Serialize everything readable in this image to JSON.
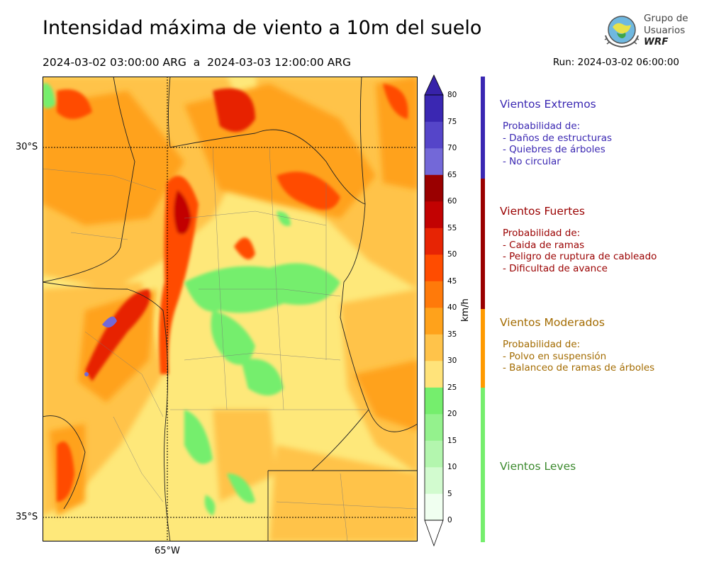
{
  "title": "Intensidad máxima de viento a 10m del suelo",
  "date_range": "2024-03-02 03:00:00 ARG  a  2024-03-03 12:00:00 ARG",
  "run": "Run: 2024-03-02 06:00:00",
  "logo": {
    "line1": "Grupo de",
    "line2": "Usuarios",
    "line3": "WRF"
  },
  "map": {
    "lat_labels": [
      "30°S",
      "35°S"
    ],
    "lon_labels": [
      "65°W"
    ],
    "background_color": "#fee87a"
  },
  "colorbar": {
    "unit": "km/h",
    "ticks": [
      "0",
      "5",
      "10",
      "15",
      "20",
      "25",
      "30",
      "35",
      "40",
      "45",
      "50",
      "55",
      "60",
      "65",
      "70",
      "75",
      "80"
    ],
    "colors": [
      "#f0fff0",
      "#d2fbcf",
      "#b3f6ae",
      "#94f28d",
      "#75ee6d",
      "#ffe37a",
      "#ffc34a",
      "#ffa21b",
      "#ff7a0a",
      "#ff4c00",
      "#e72404",
      "#c20202",
      "#9a0000",
      "#7368d8",
      "#5545c9",
      "#3a27b2"
    ],
    "under_color": "#ffffff",
    "over_color": "#3722a9"
  },
  "categories": [
    {
      "title": "Vientos Extremos",
      "color": "#3a27b2",
      "lines": [
        "Probabilidad de:",
        "- Daños de estructuras",
        "- Quiebres de árboles",
        "- No circular"
      ]
    },
    {
      "title": "Vientos Fuertes",
      "color": "#9a0000",
      "lines": [
        "Probabilidad de:",
        "- Caida de ramas",
        "- Peligro de ruptura de cableado",
        "- Dificultad de avance"
      ]
    },
    {
      "title": "Vientos Moderados",
      "color": "#a36b00",
      "lines": [
        "Probabilidad de:",
        "- Polvo en suspensión",
        "- Balanceo de ramas de árboles"
      ]
    },
    {
      "title": "Vientos Leves",
      "color": "#3c8a2e",
      "lines": []
    }
  ],
  "category_strip_colors": [
    "#3a27b2",
    "#9a0000",
    "#ff9a00",
    "#75ee6d"
  ]
}
